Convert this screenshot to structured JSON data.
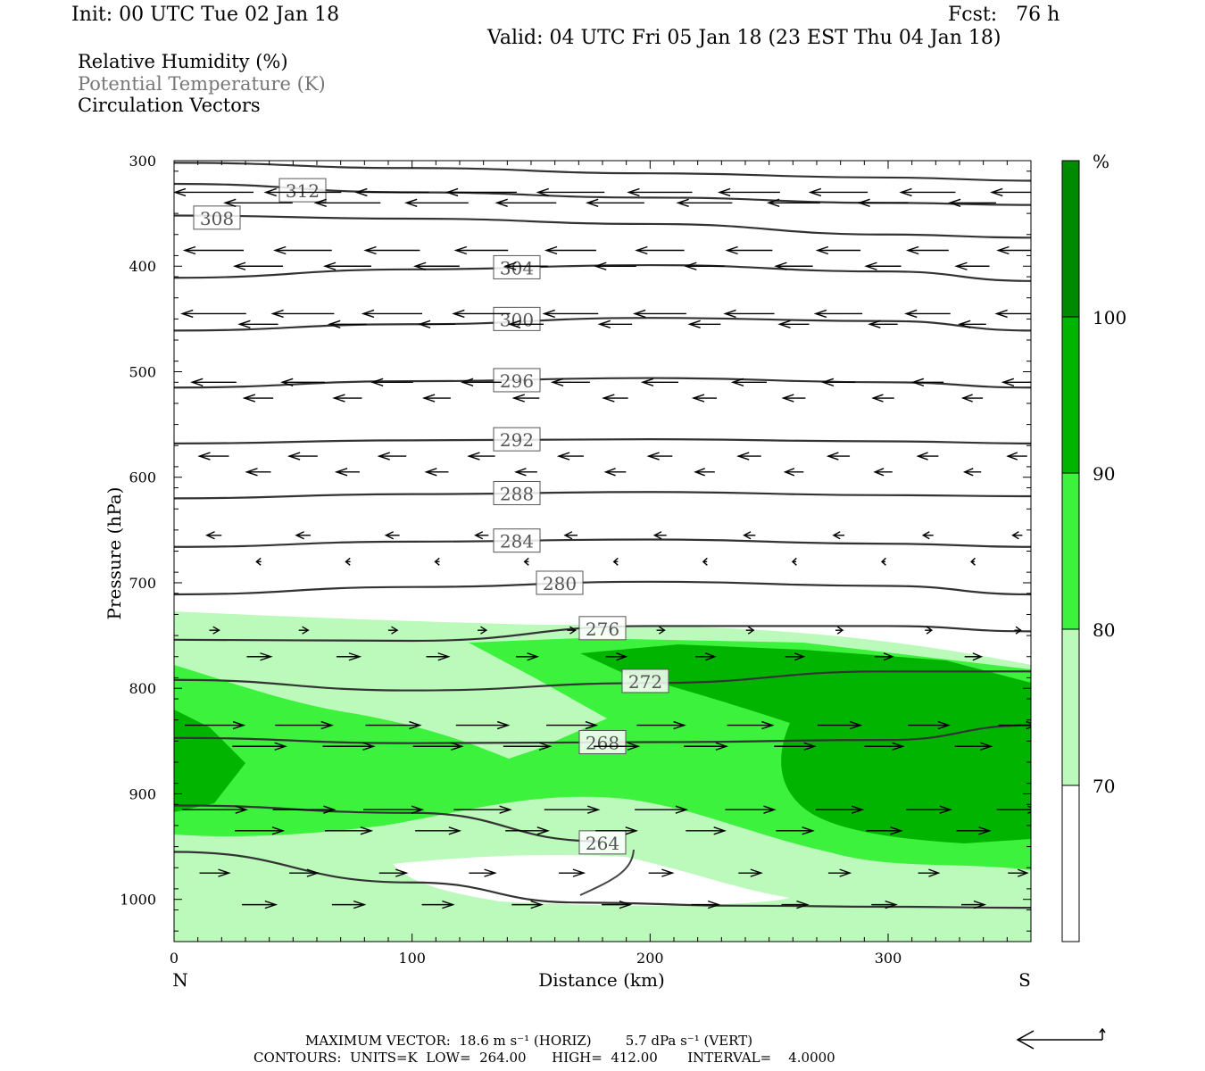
{
  "header": {
    "init": "Init: 00 UTC Tue 02 Jan 18",
    "fcst": "Fcst:   76 h",
    "valid": "Valid: 04 UTC Fri 05 Jan 18 (23 EST Thu 04 Jan 18)"
  },
  "legend_lines": {
    "rh": "Relative Humidity (%)",
    "theta": "Potential Temperature (K)",
    "vectors": "Circulation Vectors"
  },
  "colors": {
    "rh_70_80": "#bbfabb",
    "rh_80_90": "#3cf23c",
    "rh_90_100": "#00b400",
    "rh_100": "#008a00",
    "contour": "#333333",
    "theta_label": "#555555"
  },
  "footer": {
    "max_vector": "MAXIMUM VECTOR:  18.6 m s⁻¹ (HORIZ)        5.7 dPa s⁻¹ (VERT)",
    "contours": "CONTOURS:  UNITS=K  LOW=  264.00      HIGH=  412.00       INTERVAL=    4.0000"
  },
  "chart_data": {
    "type": "cross-section",
    "xlabel": "Distance (km)",
    "ylabel": "Pressure (hPa)",
    "xlim": [
      0,
      360
    ],
    "ylim": [
      1040,
      300
    ],
    "xticks": [
      0,
      100,
      200,
      300
    ],
    "yticks": [
      300,
      400,
      500,
      600,
      700,
      800,
      900,
      1000
    ],
    "x_end_labels": {
      "left": "N",
      "right": "S"
    },
    "colorbar": {
      "unit": "%",
      "ticks": [
        70,
        80,
        90,
        100
      ]
    },
    "theta_contours": [
      {
        "label": "312",
        "label_at": [
          54,
          328
        ],
        "points": [
          [
            0,
            302
          ],
          [
            100,
            307
          ],
          [
            200,
            312
          ],
          [
            300,
            316
          ],
          [
            360,
            319
          ]
        ]
      },
      {
        "label": "308",
        "label_at": [
          18,
          354
        ],
        "points": [
          [
            0,
            322
          ],
          [
            100,
            330
          ],
          [
            200,
            335
          ],
          [
            300,
            340
          ],
          [
            360,
            342
          ]
        ]
      },
      {
        "label": "",
        "label_at": null,
        "points": [
          [
            0,
            352
          ],
          [
            100,
            355
          ],
          [
            200,
            360
          ],
          [
            300,
            370
          ],
          [
            360,
            373
          ]
        ]
      },
      {
        "label": "304",
        "label_at": [
          144,
          401
        ],
        "points": [
          [
            0,
            411
          ],
          [
            100,
            403
          ],
          [
            200,
            399
          ],
          [
            300,
            405
          ],
          [
            360,
            414
          ]
        ]
      },
      {
        "label": "300",
        "label_at": [
          144,
          450
        ],
        "points": [
          [
            0,
            461
          ],
          [
            100,
            455
          ],
          [
            200,
            449
          ],
          [
            300,
            452
          ],
          [
            360,
            461
          ]
        ]
      },
      {
        "label": "296",
        "label_at": [
          144,
          508
        ],
        "points": [
          [
            0,
            515
          ],
          [
            100,
            509
          ],
          [
            200,
            506
          ],
          [
            300,
            510
          ],
          [
            360,
            515
          ]
        ]
      },
      {
        "label": "292",
        "label_at": [
          144,
          564
        ],
        "points": [
          [
            0,
            568
          ],
          [
            100,
            565
          ],
          [
            200,
            564
          ],
          [
            300,
            566
          ],
          [
            360,
            568
          ]
        ]
      },
      {
        "label": "288",
        "label_at": [
          144,
          615
        ],
        "points": [
          [
            0,
            620
          ],
          [
            100,
            616
          ],
          [
            200,
            614
          ],
          [
            300,
            617
          ],
          [
            360,
            618
          ]
        ]
      },
      {
        "label": "284",
        "label_at": [
          144,
          660
        ],
        "points": [
          [
            0,
            666
          ],
          [
            100,
            661
          ],
          [
            200,
            659
          ],
          [
            300,
            663
          ],
          [
            360,
            666
          ]
        ]
      },
      {
        "label": "280",
        "label_at": [
          162,
          700
        ],
        "points": [
          [
            0,
            711
          ],
          [
            100,
            704
          ],
          [
            200,
            699
          ],
          [
            300,
            703
          ],
          [
            360,
            711
          ]
        ]
      },
      {
        "label": "276",
        "label_at": [
          180,
          743
        ],
        "points": [
          [
            0,
            754
          ],
          [
            100,
            755
          ],
          [
            200,
            741
          ],
          [
            300,
            741
          ],
          [
            360,
            746
          ]
        ]
      },
      {
        "label": "272",
        "label_at": [
          198,
          793
        ],
        "points": [
          [
            0,
            792
          ],
          [
            100,
            802
          ],
          [
            200,
            795
          ],
          [
            300,
            784
          ],
          [
            360,
            784
          ]
        ]
      },
      {
        "label": "268",
        "label_at": [
          180,
          851
        ],
        "points": [
          [
            0,
            847
          ],
          [
            100,
            852
          ],
          [
            200,
            851
          ],
          [
            300,
            849
          ],
          [
            360,
            835
          ]
        ]
      },
      {
        "label": "264",
        "label_at": [
          180,
          946
        ],
        "points": [
          [
            0,
            911
          ],
          [
            100,
            918
          ],
          [
            180,
            945
          ]
        ]
      },
      {
        "label": "",
        "label_at": null,
        "points": [
          [
            0,
            955
          ],
          [
            100,
            984
          ],
          [
            170,
            1003
          ],
          [
            240,
            1006
          ],
          [
            300,
            1007
          ],
          [
            360,
            1008
          ]
        ]
      }
    ],
    "rh_fill_levels": [
      70,
      80,
      90,
      100
    ],
    "vectors": {
      "note": "horizontal wind ~ westward aloft, eastward in the low levels",
      "rows": [
        {
          "p": 330,
          "u": -16
        },
        {
          "p": 340,
          "u": -14
        },
        {
          "p": 385,
          "u": -12
        },
        {
          "p": 400,
          "u": -10
        },
        {
          "p": 445,
          "u": -13
        },
        {
          "p": 455,
          "u": -8
        },
        {
          "p": 510,
          "u": -9
        },
        {
          "p": 525,
          "u": -6
        },
        {
          "p": 580,
          "u": -6
        },
        {
          "p": 595,
          "u": -5
        },
        {
          "p": 655,
          "u": -3
        },
        {
          "p": 680,
          "u": -1
        },
        {
          "p": 745,
          "u": 2
        },
        {
          "p": 770,
          "u": 5
        },
        {
          "p": 835,
          "u": 12
        },
        {
          "p": 855,
          "u": 11
        },
        {
          "p": 915,
          "u": 13
        },
        {
          "p": 935,
          "u": 10
        },
        {
          "p": 975,
          "u": 6
        },
        {
          "p": 1005,
          "u": 7
        }
      ]
    }
  }
}
